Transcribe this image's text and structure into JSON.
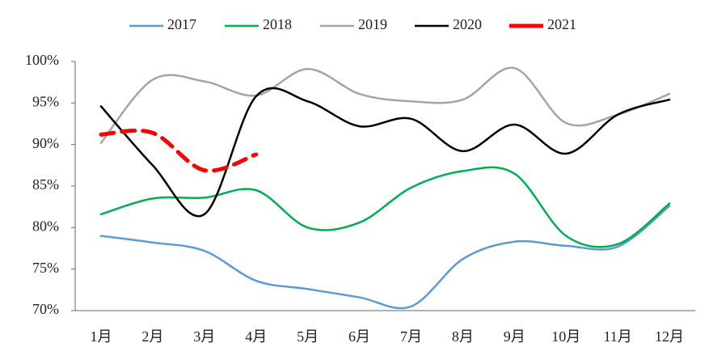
{
  "chart_data": {
    "type": "line",
    "categories": [
      "1月",
      "2月",
      "3月",
      "4月",
      "5月",
      "6月",
      "7月",
      "8月",
      "9月",
      "10月",
      "11月",
      "12月"
    ],
    "series": [
      {
        "name": "2017",
        "color": "#5b9bd5",
        "values": [
          79.0,
          78.2,
          77.2,
          73.6,
          72.6,
          71.6,
          70.5,
          76.2,
          78.3,
          77.8,
          77.7,
          82.6
        ]
      },
      {
        "name": "2018",
        "color": "#00b050",
        "values": [
          81.6,
          83.5,
          83.6,
          84.5,
          80.0,
          80.6,
          84.8,
          86.8,
          86.5,
          79.0,
          78.0,
          82.9
        ]
      },
      {
        "name": "2019",
        "color": "#a5a5a5",
        "values": [
          90.2,
          97.8,
          97.6,
          95.9,
          99.1,
          96.1,
          95.2,
          95.4,
          99.2,
          92.6,
          93.6,
          96.1
        ]
      },
      {
        "name": "2020",
        "color": "#000000",
        "values": [
          94.6,
          87.5,
          81.6,
          95.8,
          95.2,
          92.2,
          93.1,
          89.2,
          92.4,
          88.9,
          93.6,
          95.4
        ]
      },
      {
        "name": "2021",
        "color": "#ff0000",
        "dashed": true,
        "values": [
          91.2,
          91.4,
          86.9,
          88.8,
          null,
          null,
          null,
          null,
          null,
          null,
          null,
          null
        ]
      }
    ],
    "ylim": [
      70,
      100
    ],
    "yticks": [
      {
        "value": 70,
        "label": "70%"
      },
      {
        "value": 75,
        "label": "75%"
      },
      {
        "value": 80,
        "label": "80%"
      },
      {
        "value": 85,
        "label": "85%"
      },
      {
        "value": 90,
        "label": "90%"
      },
      {
        "value": 95,
        "label": "95%"
      },
      {
        "value": 100,
        "label": "100%"
      }
    ],
    "legend": "top"
  }
}
